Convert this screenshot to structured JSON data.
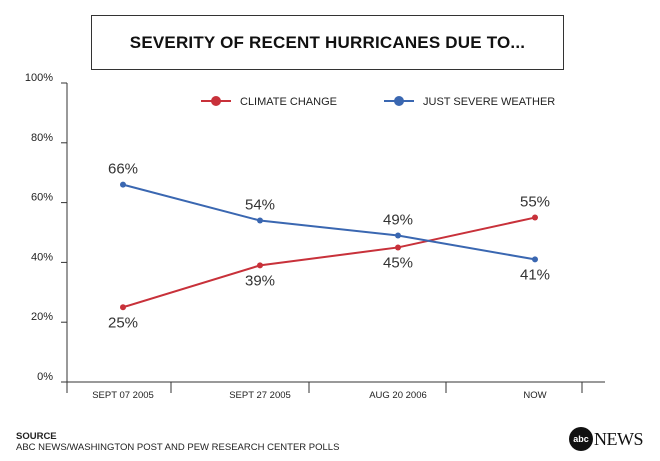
{
  "chart_data": {
    "type": "line",
    "title": "SEVERITY OF RECENT HURRICANES DUE TO...",
    "categories": [
      "SEPT 07 2005",
      "SEPT 27 2005",
      "AUG 20 2006",
      "NOW"
    ],
    "y_ticks": [
      "0%",
      "20%",
      "40%",
      "60%",
      "80%",
      "100%"
    ],
    "ylim": [
      0,
      100
    ],
    "series": [
      {
        "name": "CLIMATE CHANGE",
        "color": "#c8313a",
        "values": [
          25,
          39,
          45,
          55
        ],
        "labels": [
          "25%",
          "39%",
          "45%",
          "55%"
        ]
      },
      {
        "name": "JUST SEVERE WEATHER",
        "color": "#3a67b1",
        "values": [
          66,
          54,
          49,
          41
        ],
        "labels": [
          "66%",
          "54%",
          "49%",
          "41%"
        ]
      }
    ],
    "legend_position": "top-right"
  },
  "source": {
    "heading": "SOURCE",
    "text": "ABC NEWS/WASHINGTON POST AND PEW RESEARCH CENTER POLLS"
  },
  "logo": {
    "disc": "abc",
    "word": "NEWS"
  }
}
